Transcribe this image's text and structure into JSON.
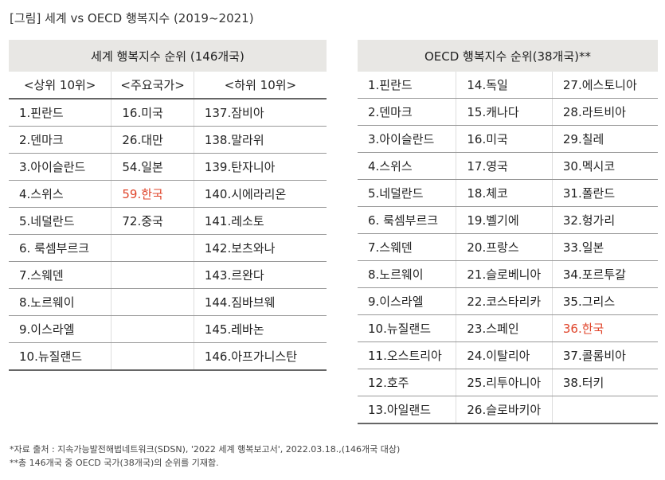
{
  "title": "[그림] 세계 vs OECD 행복지수 (2019~2021)",
  "world": {
    "header": "세계 행복지수 순위 (146개국)",
    "columns": [
      "<상위 10위>",
      "<주요국가>",
      "<하위 10위>"
    ],
    "rows": [
      [
        "1.핀란드",
        "16.미국",
        "137.잠비아"
      ],
      [
        "2.덴마크",
        "26.대만",
        "138.말라위"
      ],
      [
        "3.아이슬란드",
        "54.일본",
        "139.탄자니아"
      ],
      [
        "4.스위스",
        "59.한국",
        "140.시에라리온"
      ],
      [
        "5.네덜란드",
        "72.중국",
        "141.레소토"
      ],
      [
        "6. 룩셈부르크",
        "",
        "142.보츠와나"
      ],
      [
        "7.스웨덴",
        "",
        "143.르완다"
      ],
      [
        "8.노르웨이",
        "",
        "144.짐바브웨"
      ],
      [
        "9.이스라엘",
        "",
        "145.레바논"
      ],
      [
        "10.뉴질랜드",
        "",
        "146.아프가니스탄"
      ]
    ]
  },
  "oecd": {
    "header": "OECD 행복지수 순위(38개국)**",
    "rows": [
      [
        "1.핀란드",
        "14.독일",
        "27.에스토니아"
      ],
      [
        "2.덴마크",
        "15.캐나다",
        "28.라트비아"
      ],
      [
        "3.아이슬란드",
        "16.미국",
        "29.칠레"
      ],
      [
        "4.스위스",
        "17.영국",
        "30.멕시코"
      ],
      [
        "5.네덜란드",
        "18.체코",
        "31.폴란드"
      ],
      [
        "6. 룩셈부르크",
        "19.벨기에",
        "32.헝가리"
      ],
      [
        "7.스웨덴",
        "20.프랑스",
        "33.일본"
      ],
      [
        "8.노르웨이",
        "21.슬로베니아",
        "34.포르투갈"
      ],
      [
        "9.이스라엘",
        "22.코스타리카",
        "35.그리스"
      ],
      [
        "10.뉴질랜드",
        "23.스페인",
        "36.한국"
      ],
      [
        "11.오스트리아",
        "24.이탈리아",
        "37.콜롬비아"
      ],
      [
        "12.호주",
        "25.리투아니아",
        "38.터키"
      ],
      [
        "13.아일랜드",
        "26.슬로바키아",
        ""
      ]
    ]
  },
  "highlight_color": "#e0452b",
  "footnotes": [
    "*자료 출처 : 지속가능발전해법네트워크(SDSN), '2022 세계 행복보고서', 2022.03.18.,(146개국 대상)",
    "**총 146개국 중 OECD 국가(38개국)의 순위를 기재함."
  ]
}
